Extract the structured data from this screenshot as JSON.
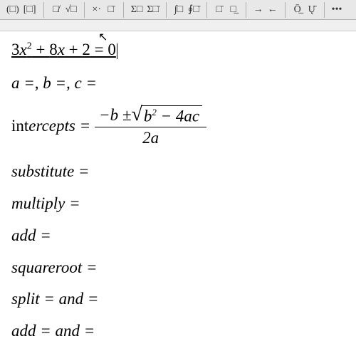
{
  "toolbar": {
    "groups": [
      [
        "(□)",
        "[□]"
      ],
      [
        "□̸",
        "√□"
      ],
      [
        "×·",
        "□̈"
      ],
      [
        "Σ□",
        "Σ□̈"
      ],
      [
        "∫□",
        "∮□̈"
      ],
      [
        "□̄",
        "□̲"
      ],
      [
        "→",
        "←"
      ],
      [
        "Ō̲",
        "Ų̄"
      ],
      [
        "•••"
      ]
    ]
  },
  "equation": {
    "coef_a": "3",
    "var_x": "x",
    "exp_2": "2",
    "plus1": " + ",
    "coef_b": "8",
    "var_x2": "x",
    "plus2": " + ",
    "coef_c": "2",
    "eq_zero": " = 0"
  },
  "coeff_line": "a =, b =, c =",
  "formula": {
    "label_left": "int",
    "label_ital": " ercepts = ",
    "num_prefix": "−b ± ",
    "sqrt_inner_b": "b",
    "sqrt_inner_rest": " − 4ac",
    "denominator": "2a"
  },
  "steps": {
    "substitute": "substitute =",
    "multiply": "multiply =",
    "add": "add =",
    "squareroot": "squareroot =",
    "split": "split = and =",
    "add2": "add = and ="
  },
  "colors": {
    "toolbar_bg": "#e8e8e8",
    "border": "#b0b0b0",
    "page_bg": "#ffffff",
    "text": "#000000"
  }
}
